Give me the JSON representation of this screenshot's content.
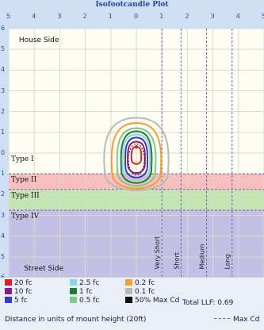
{
  "chart_data": {
    "type": "contour",
    "title": "Isofootcandle Plot",
    "x_ticks": [
      "5",
      "4",
      "3",
      "2",
      "1",
      "0",
      "1",
      "2",
      "3",
      "4",
      "5"
    ],
    "y_ticks": [
      "6",
      "5",
      "4",
      "3",
      "2",
      "1",
      "0",
      "1",
      "2",
      "3",
      "4",
      "5",
      "6"
    ],
    "xlim": [
      -5,
      5
    ],
    "ylim": [
      -6,
      6
    ],
    "grid": true,
    "regions": {
      "house_side": "House Side",
      "street_side": "Street Side"
    },
    "distribution_types": [
      {
        "label": "Type I",
        "from": 0,
        "to": 1,
        "color": "#ffffff"
      },
      {
        "label": "Type II",
        "from": 1,
        "to": 1.75,
        "color": "#f7b4b4"
      },
      {
        "label": "Type III",
        "from": 1.75,
        "to": 2.75,
        "color": "#b8e0a8"
      },
      {
        "label": "Type IV",
        "from": 2.75,
        "to": 6,
        "color": "#b9b4e2"
      }
    ],
    "lateral_lines": [
      {
        "label": "Very Short",
        "x": 1.0
      },
      {
        "label": "Short",
        "x": 1.75
      },
      {
        "label": "Medium",
        "x": 2.75
      },
      {
        "label": "Long",
        "x": 3.75
      }
    ],
    "contours": [
      {
        "label": "20 fc",
        "color": "#e02020",
        "rx": 0.2,
        "ry_top": 0.3,
        "ry_bottom": 0.6
      },
      {
        "label": "10 fc",
        "color": "#8a1a8a",
        "rx": 0.35,
        "ry_top": 0.55,
        "ry_bottom": 1.1
      },
      {
        "label": "5 fc",
        "color": "#2b3dc9",
        "rx": 0.45,
        "ry_top": 0.75,
        "ry_bottom": 1.35
      },
      {
        "label": "2.5 fc",
        "color": "#8fd3e6",
        "rx": 0.55,
        "ry_top": 0.9,
        "ry_bottom": 1.5
      },
      {
        "label": "1 fc",
        "color": "#1e7a3a",
        "rx": 0.62,
        "ry_top": 1.05,
        "ry_bottom": 1.65
      },
      {
        "label": "0.5 fc",
        "color": "#7ec98a",
        "rx": 0.78,
        "ry_top": 1.2,
        "ry_bottom": 1.8
      },
      {
        "label": "0.2 fc",
        "color": "#f0a030",
        "rx": 1.0,
        "ry_top": 1.45,
        "ry_bottom": 1.95
      },
      {
        "label": "0.1 fc",
        "color": "#b8b8b8",
        "rx": 1.3,
        "ry_top": 1.7,
        "ry_bottom": 2.05
      }
    ],
    "max_point": {
      "x": 0.0,
      "y": -0.3
    },
    "legend": [
      {
        "label": "20 fc",
        "color": "#e02020"
      },
      {
        "label": "2.5 fc",
        "color": "#8fd3e6"
      },
      {
        "label": "0.2 fc",
        "color": "#f0a030"
      },
      {
        "label": "10 fc",
        "color": "#8a1a8a"
      },
      {
        "label": "1 fc",
        "color": "#1e7a3a"
      },
      {
        "label": "0.1 fc",
        "color": "#b8b8b8"
      },
      {
        "label": "5 fc",
        "color": "#2b3dc9"
      },
      {
        "label": "0.5 fc",
        "color": "#7ec98a"
      },
      {
        "label": "50% Max Cd",
        "color": "#111111"
      }
    ],
    "total_llf": "Total LLF: 0.69",
    "xlabel": "Distance in units of mount height (20ft)",
    "max_cd_label": "Max Cd"
  }
}
